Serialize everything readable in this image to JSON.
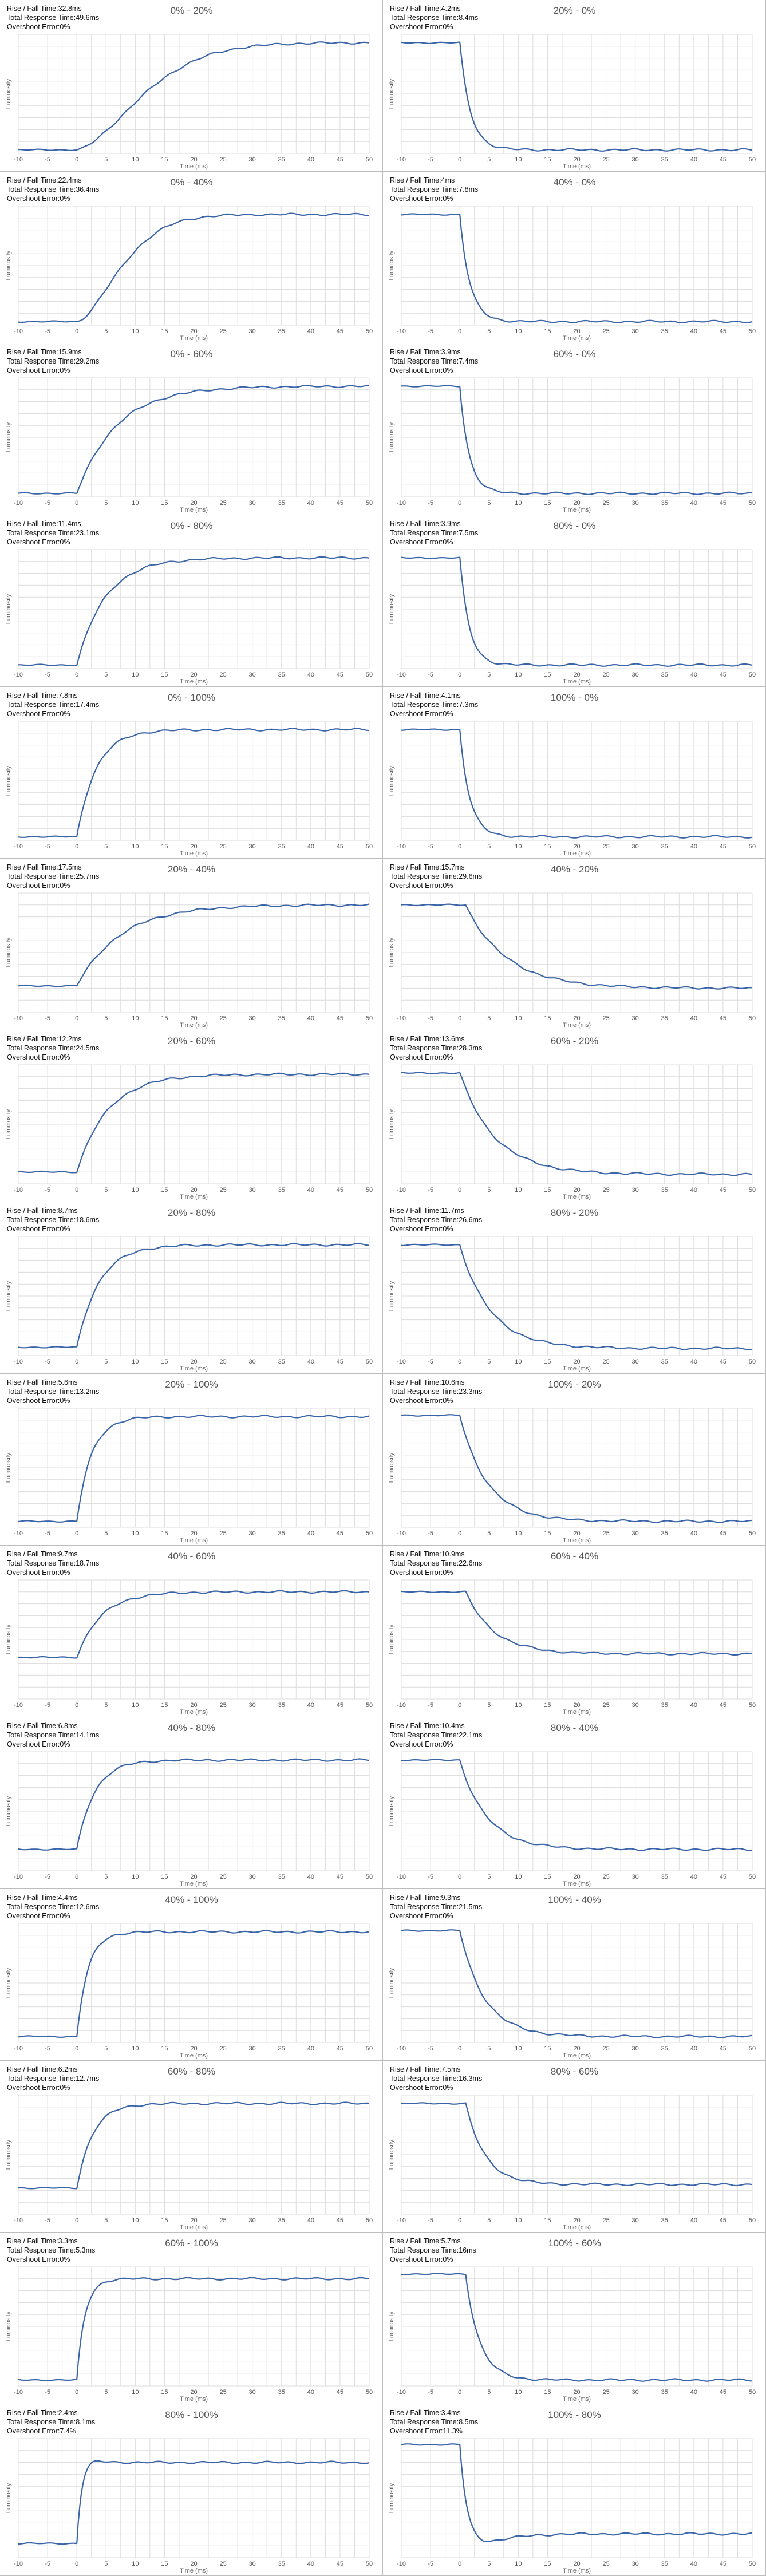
{
  "labels": {
    "rise_fall": "Rise / Fall Time:",
    "total_response": "Total Response Time:",
    "overshoot": "Overshoot Error:"
  },
  "colors": {
    "line": "#3a64a8",
    "grid": "#dcdcdc",
    "panel_border": "#bdbdbd"
  },
  "chart_data": [
    {
      "type": "line",
      "title": "0% - 20%",
      "direction": "rise",
      "rise_fall_time": "32.8ms",
      "total_response_time": "49.6ms",
      "overshoot_error": "0%",
      "xlabel": "Time (ms)",
      "ylabel": "Luminosity",
      "xlim": [
        -10,
        50
      ],
      "x_ticks": [
        -10,
        -5,
        0,
        5,
        10,
        15,
        20,
        25,
        30,
        35,
        40,
        45,
        50
      ],
      "start_level": 0.03,
      "end_level": 0.93,
      "step_time_ms": 0,
      "time_constant_ms": 14,
      "overshoot_level": 0
    },
    {
      "type": "line",
      "title": "20% - 0%",
      "direction": "fall",
      "rise_fall_time": "4.2ms",
      "total_response_time": "8.4ms",
      "overshoot_error": "0%",
      "xlabel": "Time (ms)",
      "ylabel": "Luminosity",
      "xlim": [
        -10,
        50
      ],
      "x_ticks": [
        -10,
        -5,
        0,
        5,
        10,
        15,
        20,
        25,
        30,
        35,
        40,
        45,
        50
      ],
      "start_level": 0.93,
      "end_level": 0.03,
      "step_time_ms": 0,
      "time_constant_ms": 1.8,
      "overshoot_level": 0
    },
    {
      "type": "line",
      "title": "0% - 40%",
      "direction": "rise",
      "rise_fall_time": "22.4ms",
      "total_response_time": "36.4ms",
      "overshoot_error": "0%",
      "xlabel": "Time (ms)",
      "ylabel": "Luminosity",
      "xlim": [
        -10,
        50
      ],
      "x_ticks": [
        -10,
        -5,
        0,
        5,
        10,
        15,
        20,
        25,
        30,
        35,
        40,
        45,
        50
      ],
      "start_level": 0.03,
      "end_level": 0.93,
      "step_time_ms": 0,
      "time_constant_ms": 9.5,
      "overshoot_level": 0
    },
    {
      "type": "line",
      "title": "40% - 0%",
      "direction": "fall",
      "rise_fall_time": "4ms",
      "total_response_time": "7.8ms",
      "overshoot_error": "0%",
      "xlabel": "Time (ms)",
      "ylabel": "Luminosity",
      "xlim": [
        -10,
        50
      ],
      "x_ticks": [
        -10,
        -5,
        0,
        5,
        10,
        15,
        20,
        25,
        30,
        35,
        40,
        45,
        50
      ],
      "start_level": 0.93,
      "end_level": 0.03,
      "step_time_ms": 0,
      "time_constant_ms": 1.7,
      "overshoot_level": 0
    },
    {
      "type": "line",
      "title": "0% - 60%",
      "direction": "rise",
      "rise_fall_time": "15.9ms",
      "total_response_time": "29.2ms",
      "overshoot_error": "0%",
      "xlabel": "Time (ms)",
      "ylabel": "Luminosity",
      "xlim": [
        -10,
        50
      ],
      "x_ticks": [
        -10,
        -5,
        0,
        5,
        10,
        15,
        20,
        25,
        30,
        35,
        40,
        45,
        50
      ],
      "start_level": 0.03,
      "end_level": 0.93,
      "step_time_ms": 0,
      "time_constant_ms": 6.8,
      "overshoot_level": 0
    },
    {
      "type": "line",
      "title": "60% - 0%",
      "direction": "fall",
      "rise_fall_time": "3.9ms",
      "total_response_time": "7.4ms",
      "overshoot_error": "0%",
      "xlabel": "Time (ms)",
      "ylabel": "Luminosity",
      "xlim": [
        -10,
        50
      ],
      "x_ticks": [
        -10,
        -5,
        0,
        5,
        10,
        15,
        20,
        25,
        30,
        35,
        40,
        45,
        50
      ],
      "start_level": 0.93,
      "end_level": 0.03,
      "step_time_ms": 0,
      "time_constant_ms": 1.6,
      "overshoot_level": 0
    },
    {
      "type": "line",
      "title": "0% - 80%",
      "direction": "rise",
      "rise_fall_time": "11.4ms",
      "total_response_time": "23.1ms",
      "overshoot_error": "0%",
      "xlabel": "Time (ms)",
      "ylabel": "Luminosity",
      "xlim": [
        -10,
        50
      ],
      "x_ticks": [
        -10,
        -5,
        0,
        5,
        10,
        15,
        20,
        25,
        30,
        35,
        40,
        45,
        50
      ],
      "start_level": 0.03,
      "end_level": 0.93,
      "step_time_ms": 0,
      "time_constant_ms": 4.9,
      "overshoot_level": 0
    },
    {
      "type": "line",
      "title": "80% - 0%",
      "direction": "fall",
      "rise_fall_time": "3.9ms",
      "total_response_time": "7.5ms",
      "overshoot_error": "0%",
      "xlabel": "Time (ms)",
      "ylabel": "Luminosity",
      "xlim": [
        -10,
        50
      ],
      "x_ticks": [
        -10,
        -5,
        0,
        5,
        10,
        15,
        20,
        25,
        30,
        35,
        40,
        45,
        50
      ],
      "start_level": 0.93,
      "end_level": 0.03,
      "step_time_ms": 0,
      "time_constant_ms": 1.6,
      "overshoot_level": 0
    },
    {
      "type": "line",
      "title": "0% - 100%",
      "direction": "rise",
      "rise_fall_time": "7.8ms",
      "total_response_time": "17.4ms",
      "overshoot_error": "0%",
      "xlabel": "Time (ms)",
      "ylabel": "Luminosity",
      "xlim": [
        -10,
        50
      ],
      "x_ticks": [
        -10,
        -5,
        0,
        5,
        10,
        15,
        20,
        25,
        30,
        35,
        40,
        45,
        50
      ],
      "start_level": 0.03,
      "end_level": 0.93,
      "step_time_ms": 0,
      "time_constant_ms": 3.3,
      "overshoot_level": 0
    },
    {
      "type": "line",
      "title": "100% - 0%",
      "direction": "fall",
      "rise_fall_time": "4.1ms",
      "total_response_time": "7.3ms",
      "overshoot_error": "0%",
      "xlabel": "Time (ms)",
      "ylabel": "Luminosity",
      "xlim": [
        -10,
        50
      ],
      "x_ticks": [
        -10,
        -5,
        0,
        5,
        10,
        15,
        20,
        25,
        30,
        35,
        40,
        45,
        50
      ],
      "start_level": 0.93,
      "end_level": 0.03,
      "step_time_ms": 0,
      "time_constant_ms": 1.7,
      "overshoot_level": 0
    },
    {
      "type": "line",
      "title": "20% - 40%",
      "direction": "rise",
      "rise_fall_time": "17.5ms",
      "total_response_time": "25.7ms",
      "overshoot_error": "0%",
      "xlabel": "Time (ms)",
      "ylabel": "Luminosity",
      "xlim": [
        -10,
        50
      ],
      "x_ticks": [
        -10,
        -5,
        0,
        5,
        10,
        15,
        20,
        25,
        30,
        35,
        40,
        45,
        50
      ],
      "start_level": 0.22,
      "end_level": 0.9,
      "step_time_ms": 0,
      "time_constant_ms": 7.5,
      "overshoot_level": 0
    },
    {
      "type": "line",
      "title": "40% - 20%",
      "direction": "fall",
      "rise_fall_time": "15.7ms",
      "total_response_time": "29.6ms",
      "overshoot_error": "0%",
      "xlabel": "Time (ms)",
      "ylabel": "Luminosity",
      "xlim": [
        -10,
        50
      ],
      "x_ticks": [
        -10,
        -5,
        0,
        5,
        10,
        15,
        20,
        25,
        30,
        35,
        40,
        45,
        50
      ],
      "start_level": 0.9,
      "end_level": 0.2,
      "step_time_ms": 1,
      "time_constant_ms": 7,
      "overshoot_level": 0
    },
    {
      "type": "line",
      "title": "20% - 60%",
      "direction": "rise",
      "rise_fall_time": "12.2ms",
      "total_response_time": "24.5ms",
      "overshoot_error": "0%",
      "xlabel": "Time (ms)",
      "ylabel": "Luminosity",
      "xlim": [
        -10,
        50
      ],
      "x_ticks": [
        -10,
        -5,
        0,
        5,
        10,
        15,
        20,
        25,
        30,
        35,
        40,
        45,
        50
      ],
      "start_level": 0.1,
      "end_level": 0.92,
      "step_time_ms": 0,
      "time_constant_ms": 5.3,
      "overshoot_level": 0
    },
    {
      "type": "line",
      "title": "60% - 20%",
      "direction": "fall",
      "rise_fall_time": "13.6ms",
      "total_response_time": "28.3ms",
      "overshoot_error": "0%",
      "xlabel": "Time (ms)",
      "ylabel": "Luminosity",
      "xlim": [
        -10,
        50
      ],
      "x_ticks": [
        -10,
        -5,
        0,
        5,
        10,
        15,
        20,
        25,
        30,
        35,
        40,
        45,
        50
      ],
      "start_level": 0.93,
      "end_level": 0.08,
      "step_time_ms": 0,
      "time_constant_ms": 6,
      "overshoot_level": 0
    },
    {
      "type": "line",
      "title": "20% - 80%",
      "direction": "rise",
      "rise_fall_time": "8.7ms",
      "total_response_time": "18.6ms",
      "overshoot_error": "0%",
      "xlabel": "Time (ms)",
      "ylabel": "Luminosity",
      "xlim": [
        -10,
        50
      ],
      "x_ticks": [
        -10,
        -5,
        0,
        5,
        10,
        15,
        20,
        25,
        30,
        35,
        40,
        45,
        50
      ],
      "start_level": 0.07,
      "end_level": 0.93,
      "step_time_ms": 0,
      "time_constant_ms": 3.8,
      "overshoot_level": 0
    },
    {
      "type": "line",
      "title": "80% - 20%",
      "direction": "fall",
      "rise_fall_time": "11.7ms",
      "total_response_time": "26.6ms",
      "overshoot_error": "0%",
      "xlabel": "Time (ms)",
      "ylabel": "Luminosity",
      "xlim": [
        -10,
        50
      ],
      "x_ticks": [
        -10,
        -5,
        0,
        5,
        10,
        15,
        20,
        25,
        30,
        35,
        40,
        45,
        50
      ],
      "start_level": 0.93,
      "end_level": 0.06,
      "step_time_ms": 0,
      "time_constant_ms": 5.2,
      "overshoot_level": 0
    },
    {
      "type": "line",
      "title": "20% - 100%",
      "direction": "rise",
      "rise_fall_time": "5.6ms",
      "total_response_time": "13.2ms",
      "overshoot_error": "0%",
      "xlabel": "Time (ms)",
      "ylabel": "Luminosity",
      "xlim": [
        -10,
        50
      ],
      "x_ticks": [
        -10,
        -5,
        0,
        5,
        10,
        15,
        20,
        25,
        30,
        35,
        40,
        45,
        50
      ],
      "start_level": 0.05,
      "end_level": 0.93,
      "step_time_ms": 0,
      "time_constant_ms": 2.5,
      "overshoot_level": 0
    },
    {
      "type": "line",
      "title": "100% - 20%",
      "direction": "fall",
      "rise_fall_time": "10.6ms",
      "total_response_time": "23.3ms",
      "overshoot_error": "0%",
      "xlabel": "Time (ms)",
      "ylabel": "Luminosity",
      "xlim": [
        -10,
        50
      ],
      "x_ticks": [
        -10,
        -5,
        0,
        5,
        10,
        15,
        20,
        25,
        30,
        35,
        40,
        45,
        50
      ],
      "start_level": 0.94,
      "end_level": 0.05,
      "step_time_ms": 0,
      "time_constant_ms": 4.7,
      "overshoot_level": 0
    },
    {
      "type": "line",
      "title": "40% - 60%",
      "direction": "rise",
      "rise_fall_time": "9.7ms",
      "total_response_time": "18.7ms",
      "overshoot_error": "0%",
      "xlabel": "Time (ms)",
      "ylabel": "Luminosity",
      "xlim": [
        -10,
        50
      ],
      "x_ticks": [
        -10,
        -5,
        0,
        5,
        10,
        15,
        20,
        25,
        30,
        35,
        40,
        45,
        50
      ],
      "start_level": 0.35,
      "end_level": 0.9,
      "step_time_ms": 0,
      "time_constant_ms": 4.2,
      "overshoot_level": 0
    },
    {
      "type": "line",
      "title": "60% - 40%",
      "direction": "fall",
      "rise_fall_time": "10.9ms",
      "total_response_time": "22.6ms",
      "overshoot_error": "0%",
      "xlabel": "Time (ms)",
      "ylabel": "Luminosity",
      "xlim": [
        -10,
        50
      ],
      "x_ticks": [
        -10,
        -5,
        0,
        5,
        10,
        15,
        20,
        25,
        30,
        35,
        40,
        45,
        50
      ],
      "start_level": 0.9,
      "end_level": 0.38,
      "step_time_ms": 1,
      "time_constant_ms": 4.8,
      "overshoot_level": 0
    },
    {
      "type": "line",
      "title": "40% - 80%",
      "direction": "rise",
      "rise_fall_time": "6.8ms",
      "total_response_time": "14.1ms",
      "overshoot_error": "0%",
      "xlabel": "Time (ms)",
      "ylabel": "Luminosity",
      "xlim": [
        -10,
        50
      ],
      "x_ticks": [
        -10,
        -5,
        0,
        5,
        10,
        15,
        20,
        25,
        30,
        35,
        40,
        45,
        50
      ],
      "start_level": 0.18,
      "end_level": 0.93,
      "step_time_ms": 0,
      "time_constant_ms": 3,
      "overshoot_level": 0
    },
    {
      "type": "line",
      "title": "80% - 40%",
      "direction": "fall",
      "rise_fall_time": "10.4ms",
      "total_response_time": "22.1ms",
      "overshoot_error": "0%",
      "xlabel": "Time (ms)",
      "ylabel": "Luminosity",
      "xlim": [
        -10,
        50
      ],
      "x_ticks": [
        -10,
        -5,
        0,
        5,
        10,
        15,
        20,
        25,
        30,
        35,
        40,
        45,
        50
      ],
      "start_level": 0.93,
      "end_level": 0.18,
      "step_time_ms": 0,
      "time_constant_ms": 4.6,
      "overshoot_level": 0
    },
    {
      "type": "line",
      "title": "40% - 100%",
      "direction": "rise",
      "rise_fall_time": "4.4ms",
      "total_response_time": "12.6ms",
      "overshoot_error": "0%",
      "xlabel": "Time (ms)",
      "ylabel": "Luminosity",
      "xlim": [
        -10,
        50
      ],
      "x_ticks": [
        -10,
        -5,
        0,
        5,
        10,
        15,
        20,
        25,
        30,
        35,
        40,
        45,
        50
      ],
      "start_level": 0.05,
      "end_level": 0.93,
      "step_time_ms": 0,
      "time_constant_ms": 1.9,
      "overshoot_level": 0
    },
    {
      "type": "line",
      "title": "100% - 40%",
      "direction": "fall",
      "rise_fall_time": "9.3ms",
      "total_response_time": "21.5ms",
      "overshoot_error": "0%",
      "xlabel": "Time (ms)",
      "ylabel": "Luminosity",
      "xlim": [
        -10,
        50
      ],
      "x_ticks": [
        -10,
        -5,
        0,
        5,
        10,
        15,
        20,
        25,
        30,
        35,
        40,
        45,
        50
      ],
      "start_level": 0.94,
      "end_level": 0.05,
      "step_time_ms": 0,
      "time_constant_ms": 4.2,
      "overshoot_level": 0
    },
    {
      "type": "line",
      "title": "60% - 80%",
      "direction": "rise",
      "rise_fall_time": "6.2ms",
      "total_response_time": "12.7ms",
      "overshoot_error": "0%",
      "xlabel": "Time (ms)",
      "ylabel": "Luminosity",
      "xlim": [
        -10,
        50
      ],
      "x_ticks": [
        -10,
        -5,
        0,
        5,
        10,
        15,
        20,
        25,
        30,
        35,
        40,
        45,
        50
      ],
      "start_level": 0.22,
      "end_level": 0.93,
      "step_time_ms": 0,
      "time_constant_ms": 2.7,
      "overshoot_level": 0
    },
    {
      "type": "line",
      "title": "80% - 60%",
      "direction": "fall",
      "rise_fall_time": "7.5ms",
      "total_response_time": "16.3ms",
      "overshoot_error": "0%",
      "xlabel": "Time (ms)",
      "ylabel": "Luminosity",
      "xlim": [
        -10,
        50
      ],
      "x_ticks": [
        -10,
        -5,
        0,
        5,
        10,
        15,
        20,
        25,
        30,
        35,
        40,
        45,
        50
      ],
      "start_level": 0.93,
      "end_level": 0.25,
      "step_time_ms": 1,
      "time_constant_ms": 3.3,
      "overshoot_level": 0
    },
    {
      "type": "line",
      "title": "60% - 100%",
      "direction": "rise",
      "rise_fall_time": "3.3ms",
      "total_response_time": "5.3ms",
      "overshoot_error": "0%",
      "xlabel": "Time (ms)",
      "ylabel": "Luminosity",
      "xlim": [
        -10,
        50
      ],
      "x_ticks": [
        -10,
        -5,
        0,
        5,
        10,
        15,
        20,
        25,
        30,
        35,
        40,
        45,
        50
      ],
      "start_level": 0.05,
      "end_level": 0.9,
      "step_time_ms": 0,
      "time_constant_ms": 1.4,
      "overshoot_level": 0
    },
    {
      "type": "line",
      "title": "100% - 60%",
      "direction": "fall",
      "rise_fall_time": "5.7ms",
      "total_response_time": "16ms",
      "overshoot_error": "0%",
      "xlabel": "Time (ms)",
      "ylabel": "Luminosity",
      "xlim": [
        -10,
        50
      ],
      "x_ticks": [
        -10,
        -5,
        0,
        5,
        10,
        15,
        20,
        25,
        30,
        35,
        40,
        45,
        50
      ],
      "start_level": 0.94,
      "end_level": 0.05,
      "step_time_ms": 1,
      "time_constant_ms": 2.4,
      "overshoot_level": 0
    },
    {
      "type": "line",
      "title": "80% - 100%",
      "direction": "rise",
      "rise_fall_time": "2.4ms",
      "total_response_time": "8.1ms",
      "overshoot_error": "7.4%",
      "xlabel": "Time (ms)",
      "ylabel": "Luminosity",
      "xlim": [
        -10,
        50
      ],
      "x_ticks": [
        -10,
        -5,
        0,
        5,
        10,
        15,
        20,
        25,
        30,
        35,
        40,
        45,
        50
      ],
      "start_level": 0.12,
      "end_level": 0.8,
      "step_time_ms": 0,
      "time_constant_ms": 1,
      "overshoot_level": 0.07
    },
    {
      "type": "line",
      "title": "100% - 80%",
      "direction": "fall",
      "rise_fall_time": "3.4ms",
      "total_response_time": "8.5ms",
      "overshoot_error": "11.3%",
      "xlabel": "Time (ms)",
      "ylabel": "Luminosity",
      "xlim": [
        -10,
        50
      ],
      "x_ticks": [
        -10,
        -5,
        0,
        5,
        10,
        15,
        20,
        25,
        30,
        35,
        40,
        45,
        50
      ],
      "start_level": 0.95,
      "end_level": 0.2,
      "step_time_ms": 0,
      "time_constant_ms": 1.3,
      "overshoot_level": 0.09
    }
  ]
}
